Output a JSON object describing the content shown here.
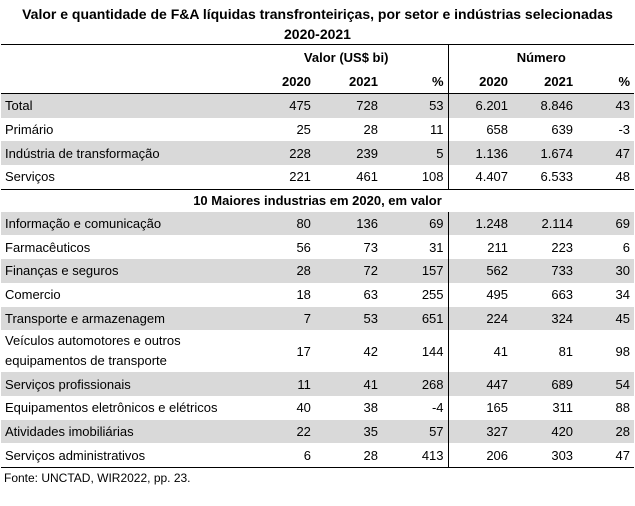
{
  "title_line1": "Valor e quantidade de F&A líquidas transfronteiriças, por setor e indústrias selecionadas",
  "title_line2": "2020-2021",
  "header": {
    "valor_group": "Valor (US$ bi)",
    "numero_group": "Número",
    "years": [
      "2020",
      "2021",
      "%",
      "2020",
      "2021",
      "%"
    ]
  },
  "summary_rows": [
    {
      "label": "Total",
      "v2020": "475",
      "v2021": "728",
      "vpct": "53",
      "n2020": "6.201",
      "n2021": "8.846",
      "npct": "43"
    },
    {
      "label": "Primário",
      "v2020": "25",
      "v2021": "28",
      "vpct": "11",
      "n2020": "658",
      "n2021": "639",
      "npct": "-3"
    },
    {
      "label": "Indústria de transformação",
      "v2020": "228",
      "v2021": "239",
      "vpct": "5",
      "n2020": "1.136",
      "n2021": "1.674",
      "npct": "47"
    },
    {
      "label": "Serviços",
      "v2020": "221",
      "v2021": "461",
      "vpct": "108",
      "n2020": "4.407",
      "n2021": "6.533",
      "npct": "48"
    }
  ],
  "section_title": "10 Maiores industrias em 2020, em valor",
  "industry_rows": [
    {
      "label": "Informação e comunicação",
      "v2020": "80",
      "v2021": "136",
      "vpct": "69",
      "n2020": "1.248",
      "n2021": "2.114",
      "npct": "69"
    },
    {
      "label": "Farmacêuticos",
      "v2020": "56",
      "v2021": "73",
      "vpct": "31",
      "n2020": "211",
      "n2021": "223",
      "npct": "6"
    },
    {
      "label": "Finanças e seguros",
      "v2020": "28",
      "v2021": "72",
      "vpct": "157",
      "n2020": "562",
      "n2021": "733",
      "npct": "30"
    },
    {
      "label": "Comercio",
      "v2020": "18",
      "v2021": "63",
      "vpct": "255",
      "n2020": "495",
      "n2021": "663",
      "npct": "34"
    },
    {
      "label": "Transporte e armazenagem",
      "v2020": "7",
      "v2021": "53",
      "vpct": "651",
      "n2020": "224",
      "n2021": "324",
      "npct": "45"
    },
    {
      "label": "Veículos automotores e outros equipamentos de transporte",
      "v2020": "17",
      "v2021": "42",
      "vpct": "144",
      "n2020": "41",
      "n2021": "81",
      "npct": "98"
    },
    {
      "label": "Serviços profissionais",
      "v2020": "11",
      "v2021": "41",
      "vpct": "268",
      "n2020": "447",
      "n2021": "689",
      "npct": "54"
    },
    {
      "label": "Equipamentos eletrônicos e elétricos",
      "v2020": "40",
      "v2021": "38",
      "vpct": "-4",
      "n2020": "165",
      "n2021": "311",
      "npct": "88"
    },
    {
      "label": "Atividades imobiliárias",
      "v2020": "22",
      "v2021": "35",
      "vpct": "57",
      "n2020": "327",
      "n2021": "420",
      "npct": "28"
    },
    {
      "label": "Serviços administrativos",
      "v2020": "6",
      "v2021": "28",
      "vpct": "413",
      "n2020": "206",
      "n2021": "303",
      "npct": "47"
    }
  ],
  "source": "Fonte: UNCTAD, WIR2022, pp. 23.",
  "colors": {
    "row_shade": "#d9d9d9",
    "text": "#000000"
  }
}
